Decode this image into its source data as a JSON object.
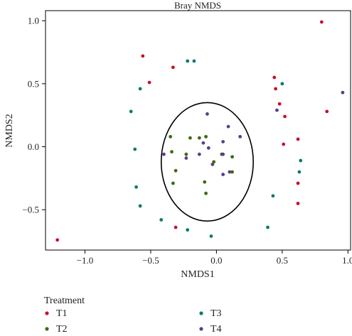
{
  "chart_data": {
    "type": "scatter",
    "title": "Bray NMDS",
    "xlabel": "NMDS1",
    "ylabel": "NMDS2",
    "xlim": [
      -1.3,
      1.02
    ],
    "ylim": [
      -0.82,
      1.08
    ],
    "x_ticks": [
      -1.0,
      -0.5,
      0.0,
      0.5,
      1.0
    ],
    "x_tick_labels": [
      "−1.0",
      "−0.5",
      "0.0",
      "0.5",
      "1.0"
    ],
    "y_ticks": [
      -0.5,
      0.0,
      0.5,
      1.0
    ],
    "y_tick_labels": [
      "−0.5",
      "0.0",
      "0.5",
      "1.0"
    ],
    "grid": false,
    "legend": {
      "title": "Treatment",
      "placement": "bottom-left"
    },
    "ellipse": {
      "cx": -0.07,
      "cy": -0.12,
      "rx": 0.35,
      "ry": 0.47
    },
    "series": [
      {
        "name": "T1",
        "color": "#c8102e",
        "points": [
          [
            -1.21,
            -0.74
          ],
          [
            -0.56,
            0.72
          ],
          [
            -0.51,
            0.51
          ],
          [
            -0.33,
            0.63
          ],
          [
            -0.31,
            -0.64
          ],
          [
            0.44,
            0.55
          ],
          [
            0.45,
            0.46
          ],
          [
            0.48,
            0.34
          ],
          [
            0.52,
            0.24
          ],
          [
            0.51,
            0.02
          ],
          [
            0.62,
            0.06
          ],
          [
            0.62,
            -0.29
          ],
          [
            0.62,
            -0.45
          ],
          [
            0.8,
            0.99
          ],
          [
            0.84,
            0.28
          ]
        ]
      },
      {
        "name": "T2",
        "color": "#3d6b0f",
        "points": [
          [
            -0.35,
            0.08
          ],
          [
            -0.34,
            -0.04
          ],
          [
            -0.31,
            -0.19
          ],
          [
            -0.33,
            -0.29
          ],
          [
            -0.23,
            -0.06
          ],
          [
            -0.2,
            0.07
          ],
          [
            -0.13,
            0.07
          ],
          [
            -0.08,
            0.08
          ],
          [
            -0.09,
            -0.28
          ],
          [
            -0.08,
            -0.37
          ],
          [
            -0.02,
            -0.12
          ],
          [
            0.04,
            -0.06
          ],
          [
            0.12,
            -0.08
          ],
          [
            0.12,
            -0.2
          ]
        ]
      },
      {
        "name": "T3",
        "color": "#0d7a6e",
        "points": [
          [
            -0.65,
            0.28
          ],
          [
            -0.58,
            0.46
          ],
          [
            -0.62,
            -0.02
          ],
          [
            -0.61,
            -0.32
          ],
          [
            -0.58,
            -0.47
          ],
          [
            -0.42,
            -0.58
          ],
          [
            -0.22,
            0.68
          ],
          [
            -0.17,
            0.68
          ],
          [
            -0.22,
            -0.66
          ],
          [
            -0.04,
            -0.71
          ],
          [
            0.39,
            -0.64
          ],
          [
            0.43,
            -0.39
          ],
          [
            0.5,
            0.5
          ],
          [
            0.64,
            -0.11
          ],
          [
            0.63,
            -0.2
          ]
        ]
      },
      {
        "name": "T4",
        "color": "#5a3d8f",
        "points": [
          [
            -0.4,
            -0.06
          ],
          [
            -0.23,
            -0.09
          ],
          [
            -0.07,
            0.26
          ],
          [
            -0.1,
            0.03
          ],
          [
            -0.13,
            -0.06
          ],
          [
            0.09,
            0.16
          ],
          [
            0.05,
            0.04
          ],
          [
            0.05,
            -0.06
          ],
          [
            0.05,
            -0.22
          ],
          [
            0.18,
            0.08
          ],
          [
            -0.03,
            -0.14
          ],
          [
            0.46,
            0.29
          ],
          [
            0.96,
            0.43
          ],
          [
            0.1,
            -0.2
          ],
          [
            -0.06,
            -0.01
          ]
        ]
      }
    ]
  }
}
